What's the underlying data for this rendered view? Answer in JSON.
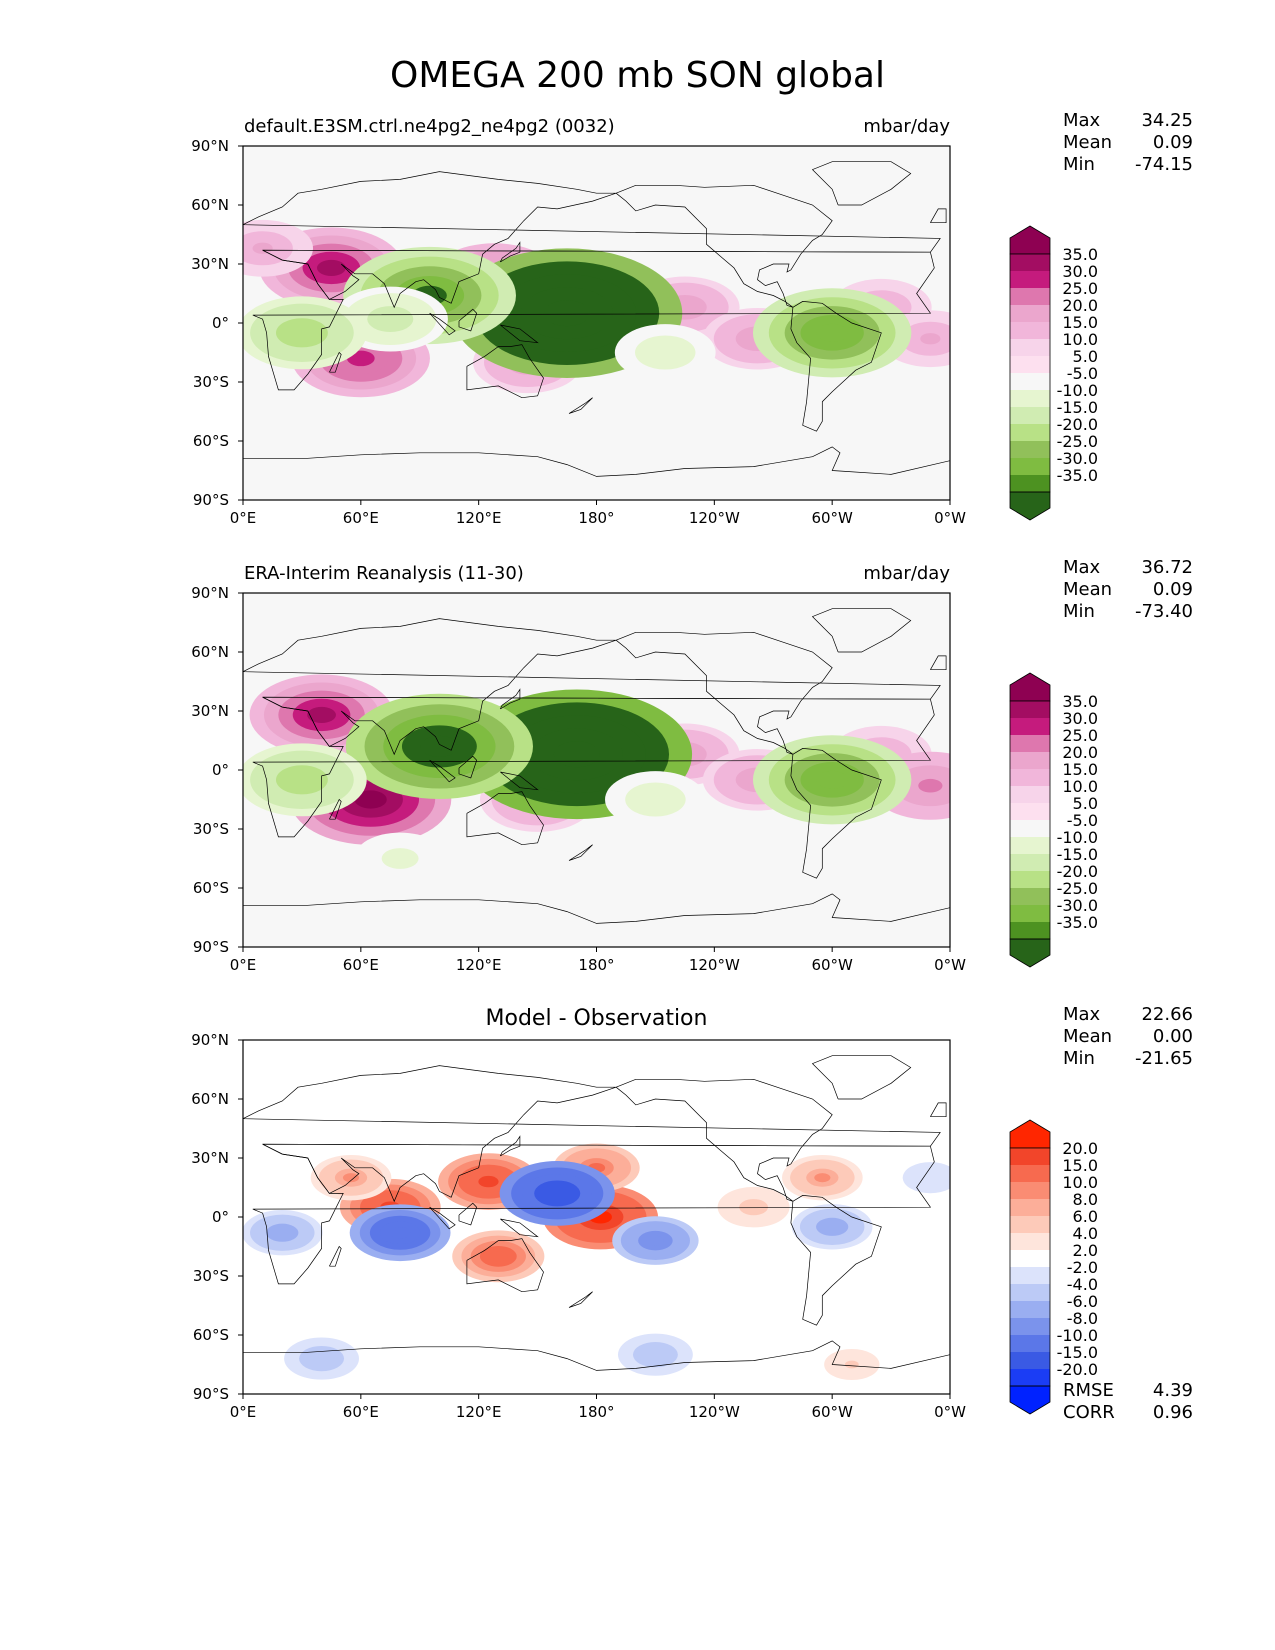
{
  "title": "OMEGA 200 mb SON global",
  "x_ticks": [
    "0°E",
    "60°E",
    "120°E",
    "180°",
    "120°W",
    "60°W",
    "0°W"
  ],
  "y_ticks": [
    "90°N",
    "60°N",
    "30°N",
    "0°",
    "30°S",
    "60°S",
    "90°S"
  ],
  "panels": [
    {
      "left_title": "default.E3SM.ctrl.ne4pg2_ne4pg2 (0032)",
      "center_title": "",
      "units": "mbar/day",
      "stats": [
        {
          "label": "Max",
          "value": "34.25"
        },
        {
          "label": "Mean",
          "value": "0.09"
        },
        {
          "label": "Min",
          "value": "-74.15"
        }
      ],
      "colorbar_labels": [
        "35.0",
        "30.0",
        "25.0",
        "20.0",
        "15.0",
        "10.0",
        "5.0",
        "-5.0",
        "-10.0",
        "-15.0",
        "-20.0",
        "-25.0",
        "-30.0",
        "-35.0"
      ],
      "colorbar_colors": [
        "#8e0152",
        "#a30d62",
        "#c51b7d",
        "#de77ae",
        "#eba6cd",
        "#f1b6da",
        "#f7d4ea",
        "#fde0ef",
        "#f7f7f7",
        "#e6f5d0",
        "#d0ecb2",
        "#b8e186",
        "#91c05a",
        "#7fbc41",
        "#4d9221",
        "#276419"
      ],
      "footer": []
    },
    {
      "left_title": "ERA-Interim Reanalysis (11-30)",
      "center_title": "",
      "units": "mbar/day",
      "stats": [
        {
          "label": "Max",
          "value": "36.72"
        },
        {
          "label": "Mean",
          "value": "0.09"
        },
        {
          "label": "Min",
          "value": "-73.40"
        }
      ],
      "colorbar_labels": [
        "35.0",
        "30.0",
        "25.0",
        "20.0",
        "15.0",
        "10.0",
        "5.0",
        "-5.0",
        "-10.0",
        "-15.0",
        "-20.0",
        "-25.0",
        "-30.0",
        "-35.0"
      ],
      "colorbar_colors": [
        "#8e0152",
        "#a30d62",
        "#c51b7d",
        "#de77ae",
        "#eba6cd",
        "#f1b6da",
        "#f7d4ea",
        "#fde0ef",
        "#f7f7f7",
        "#e6f5d0",
        "#d0ecb2",
        "#b8e186",
        "#91c05a",
        "#7fbc41",
        "#4d9221",
        "#276419"
      ],
      "footer": []
    },
    {
      "left_title": "",
      "center_title": "Model - Observation",
      "units": "",
      "stats": [
        {
          "label": "Max",
          "value": "22.66"
        },
        {
          "label": "Mean",
          "value": "0.00"
        },
        {
          "label": "Min",
          "value": "-21.65"
        }
      ],
      "colorbar_labels": [
        "20.0",
        "15.0",
        "10.0",
        "8.0",
        "6.0",
        "4.0",
        "2.0",
        "-2.0",
        "-4.0",
        "-6.0",
        "-8.0",
        "-10.0",
        "-15.0",
        "-20.0"
      ],
      "colorbar_colors": [
        "#ff2600",
        "#f2452a",
        "#f76a4f",
        "#fa8c73",
        "#fcae99",
        "#fdcab9",
        "#fee5dc",
        "#ffffff",
        "#dce3fb",
        "#bccaf6",
        "#9aaef1",
        "#7b93ec",
        "#5b77e8",
        "#3a5ae4",
        "#1b3df5",
        "#0022ff"
      ],
      "footer": [
        {
          "label": "RMSE",
          "value": "4.39"
        },
        {
          "label": "CORR",
          "value": "0.96"
        }
      ]
    }
  ],
  "chart_data": {
    "type": "heatmap",
    "map_projection": "equirectangular",
    "lon_range": [
      0,
      360
    ],
    "lat_range": [
      -90,
      90
    ],
    "panels": [
      {
        "name": "default.E3SM.ctrl.ne4pg2_ne4pg2 (0032)",
        "features": [
          {
            "lon": 45,
            "lat": 28,
            "value": 30
          },
          {
            "lon": 60,
            "lat": -18,
            "value": 28
          },
          {
            "lon": 128,
            "lat": 22,
            "value": 25
          },
          {
            "lon": 145,
            "lat": -20,
            "value": 18
          },
          {
            "lon": 225,
            "lat": 8,
            "value": 18
          },
          {
            "lon": 262,
            "lat": -8,
            "value": 18
          },
          {
            "lon": 325,
            "lat": 8,
            "value": 15
          },
          {
            "lon": 350,
            "lat": -8,
            "value": 15
          },
          {
            "lon": 10,
            "lat": 38,
            "value": 15
          },
          {
            "lon": 165,
            "lat": 5,
            "value": -60
          },
          {
            "lon": 95,
            "lat": 14,
            "value": -40
          },
          {
            "lon": 75,
            "lat": 2,
            "value": -20
          },
          {
            "lon": 30,
            "lat": -5,
            "value": -25
          },
          {
            "lon": 300,
            "lat": -5,
            "value": -35
          },
          {
            "lon": 215,
            "lat": -15,
            "value": -15
          }
        ]
      },
      {
        "name": "ERA-Interim Reanalysis (11-30)",
        "features": [
          {
            "lon": 40,
            "lat": 28,
            "value": 30
          },
          {
            "lon": 65,
            "lat": -15,
            "value": 36
          },
          {
            "lon": 130,
            "lat": 18,
            "value": 15
          },
          {
            "lon": 150,
            "lat": -15,
            "value": 20
          },
          {
            "lon": 225,
            "lat": 8,
            "value": 18
          },
          {
            "lon": 262,
            "lat": -5,
            "value": 18
          },
          {
            "lon": 325,
            "lat": 8,
            "value": 15
          },
          {
            "lon": 350,
            "lat": -8,
            "value": 22
          },
          {
            "lon": 170,
            "lat": 8,
            "value": -65
          },
          {
            "lon": 100,
            "lat": 12,
            "value": -45
          },
          {
            "lon": 30,
            "lat": -5,
            "value": -25
          },
          {
            "lon": 300,
            "lat": -5,
            "value": -35
          },
          {
            "lon": 210,
            "lat": -15,
            "value": -15
          },
          {
            "lon": 80,
            "lat": -45,
            "value": -12
          }
        ]
      },
      {
        "name": "Model - Observation",
        "features": [
          {
            "lon": 125,
            "lat": 18,
            "value": 15
          },
          {
            "lon": 75,
            "lat": 5,
            "value": 15
          },
          {
            "lon": 182,
            "lat": 0,
            "value": 20
          },
          {
            "lon": 130,
            "lat": -20,
            "value": 12
          },
          {
            "lon": 180,
            "lat": 25,
            "value": 10
          },
          {
            "lon": 55,
            "lat": 20,
            "value": 8
          },
          {
            "lon": 295,
            "lat": 20,
            "value": 8
          },
          {
            "lon": 260,
            "lat": 5,
            "value": 5
          },
          {
            "lon": 160,
            "lat": 12,
            "value": -20
          },
          {
            "lon": 80,
            "lat": -8,
            "value": -15
          },
          {
            "lon": 210,
            "lat": -12,
            "value": -10
          },
          {
            "lon": 300,
            "lat": -5,
            "value": -8
          },
          {
            "lon": 20,
            "lat": -8,
            "value": -8
          },
          {
            "lon": 40,
            "lat": -72,
            "value": -6
          },
          {
            "lon": 210,
            "lat": -70,
            "value": -6
          },
          {
            "lon": 350,
            "lat": 20,
            "value": -4
          },
          {
            "lon": 310,
            "lat": -75,
            "value": 4
          }
        ]
      }
    ]
  }
}
